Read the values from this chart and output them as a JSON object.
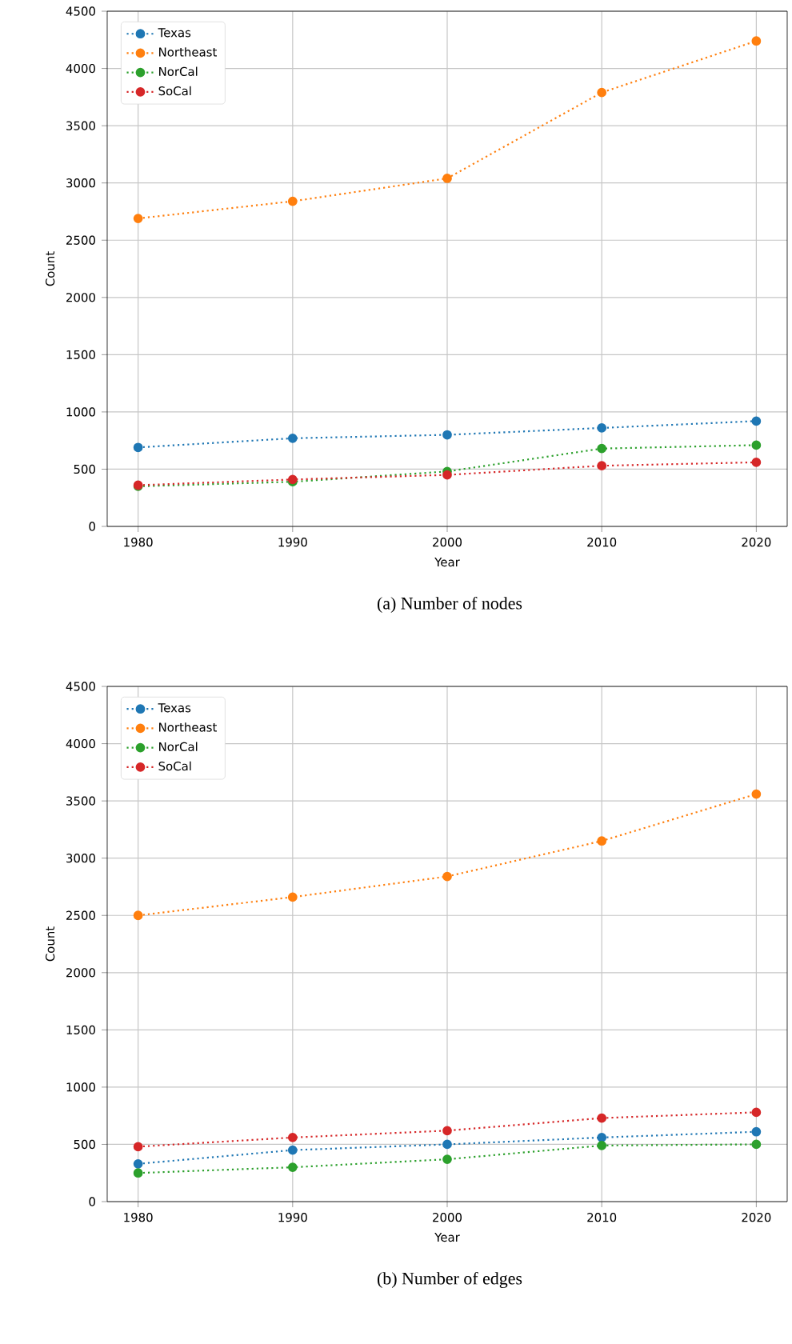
{
  "chart_data": [
    {
      "type": "line",
      "title": "(a) Number of nodes",
      "xlabel": "Year",
      "ylabel": "Count",
      "x": [
        1980,
        1990,
        2000,
        2010,
        2020
      ],
      "xlim": [
        1978,
        2022
      ],
      "xticks": [
        1980,
        1990,
        2000,
        2010,
        2020
      ],
      "ylim": [
        0,
        4500
      ],
      "yticks": [
        0,
        500,
        1000,
        1500,
        2000,
        2500,
        3000,
        3500,
        4000,
        4500
      ],
      "grid": true,
      "legend": "top left",
      "marker": "circle",
      "line_style": "dotted",
      "series": [
        {
          "name": "Texas",
          "color": "#1f77b4",
          "values": [
            690,
            770,
            800,
            860,
            920
          ]
        },
        {
          "name": "Northeast",
          "color": "#ff7f0e",
          "values": [
            2690,
            2840,
            3040,
            3790,
            4240
          ]
        },
        {
          "name": "NorCal",
          "color": "#2ca02c",
          "values": [
            350,
            390,
            480,
            680,
            710
          ]
        },
        {
          "name": "SoCal",
          "color": "#d62728",
          "values": [
            360,
            410,
            450,
            530,
            560
          ]
        }
      ]
    },
    {
      "type": "line",
      "title": "(b) Number of edges",
      "xlabel": "Year",
      "ylabel": "Count",
      "x": [
        1980,
        1990,
        2000,
        2010,
        2020
      ],
      "xlim": [
        1978,
        2022
      ],
      "xticks": [
        1980,
        1990,
        2000,
        2010,
        2020
      ],
      "ylim": [
        0,
        4500
      ],
      "yticks": [
        0,
        500,
        1000,
        1500,
        2000,
        2500,
        3000,
        3500,
        4000,
        4500
      ],
      "grid": true,
      "legend": "top left",
      "marker": "circle",
      "line_style": "dotted",
      "series": [
        {
          "name": "Texas",
          "color": "#1f77b4",
          "values": [
            330,
            450,
            500,
            560,
            610
          ]
        },
        {
          "name": "Northeast",
          "color": "#ff7f0e",
          "values": [
            2500,
            2660,
            2840,
            3150,
            3560
          ]
        },
        {
          "name": "NorCal",
          "color": "#2ca02c",
          "values": [
            250,
            300,
            370,
            490,
            500
          ]
        },
        {
          "name": "SoCal",
          "color": "#d62728",
          "values": [
            480,
            560,
            620,
            730,
            780
          ]
        }
      ]
    }
  ]
}
